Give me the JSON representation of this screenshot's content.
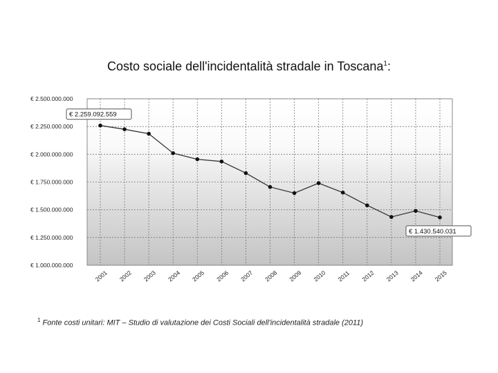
{
  "title": "Costo sociale dell'incidentalità stradale in Toscana",
  "title_note_mark": "1",
  "title_suffix": ":",
  "footnote": {
    "mark": "1",
    "text": "Fonte costi unitari: MIT – Studio di valutazione dei Costi Sociali dell'incidentalità stradale (2011)"
  },
  "chart_data": {
    "type": "line",
    "title": "Costo sociale dell'incidentalità stradale in Toscana",
    "xlabel": "",
    "ylabel": "",
    "categories": [
      "2001",
      "2002",
      "2003",
      "2004",
      "2005",
      "2006",
      "2007",
      "2008",
      "2009",
      "2010",
      "2011",
      "2012",
      "2013",
      "2014",
      "2015"
    ],
    "values": [
      2259092559,
      2225000000,
      2185000000,
      2010000000,
      1955000000,
      1935000000,
      1830000000,
      1705000000,
      1650000000,
      1740000000,
      1655000000,
      1540000000,
      1435000000,
      1490000000,
      1430540031
    ],
    "ylim": [
      1000000000,
      2500000000
    ],
    "yticks": [
      2500000000,
      2250000000,
      2000000000,
      1750000000,
      1500000000,
      1250000000,
      1000000000
    ],
    "ytick_labels": [
      "€ 2.500.000.000",
      "€ 2.250.000.000",
      "€ 2.000.000.000",
      "€ 1.750.000.000",
      "€ 1.500.000.000",
      "€ 1.250.000.000",
      "€ 1.000.000.000"
    ],
    "grid": true,
    "annotations": [
      {
        "label": "€ 2.259.092.559",
        "point_index": 0
      },
      {
        "label": "€ 1.430.540.031",
        "point_index": 14
      }
    ],
    "colors": {
      "line": "#333333",
      "marker": "#111111",
      "grid": "#777777"
    }
  }
}
